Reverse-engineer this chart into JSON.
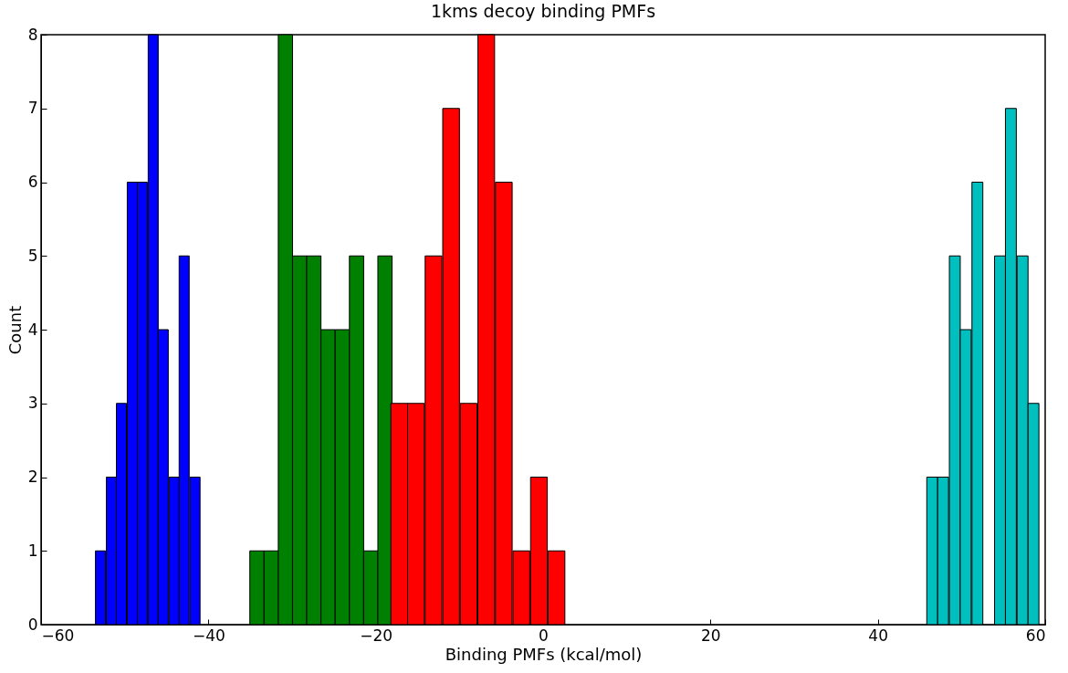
{
  "chart_data": {
    "type": "bar",
    "title": "1kms decoy binding PMFs",
    "xlabel": "Binding PMFs (kcal/mol)",
    "ylabel": "Count",
    "xlim": [
      -60,
      60
    ],
    "xticks": [
      -60,
      -40,
      -20,
      0,
      20,
      40,
      60
    ],
    "ylim": [
      0,
      8
    ],
    "yticks": [
      0,
      1,
      2,
      3,
      4,
      5,
      6,
      7,
      8
    ],
    "series": [
      {
        "color": "#0000ff",
        "x": [
          -52.9,
          -51.6,
          -50.4,
          -49.1,
          -47.9,
          -46.6,
          -45.4,
          -44.1,
          -42.9,
          -41.6
        ],
        "values": [
          1,
          2,
          3,
          6,
          6,
          8,
          4,
          2,
          5,
          2
        ]
      },
      {
        "color": "#008000",
        "x": [
          -34.2,
          -32.5,
          -30.8,
          -29.1,
          -27.4,
          -25.7,
          -24.0,
          -22.3,
          -20.6,
          -18.9
        ],
        "values": [
          1,
          1,
          8,
          5,
          5,
          4,
          4,
          5,
          1,
          5
        ]
      },
      {
        "color": "#ff0000",
        "x": [
          -17.2,
          -15.2,
          -13.1,
          -11.0,
          -8.9,
          -6.8,
          -4.7,
          -2.6,
          -0.5,
          1.6
        ],
        "values": [
          3,
          3,
          5,
          7,
          3,
          8,
          6,
          1,
          2,
          1
        ]
      },
      {
        "color": "#00bfbf",
        "x": [
          46.5,
          47.8,
          49.2,
          50.5,
          51.9,
          54.6,
          55.9,
          57.3,
          58.6
        ],
        "values": [
          2,
          2,
          5,
          4,
          6,
          5,
          7,
          5,
          3
        ]
      }
    ]
  }
}
